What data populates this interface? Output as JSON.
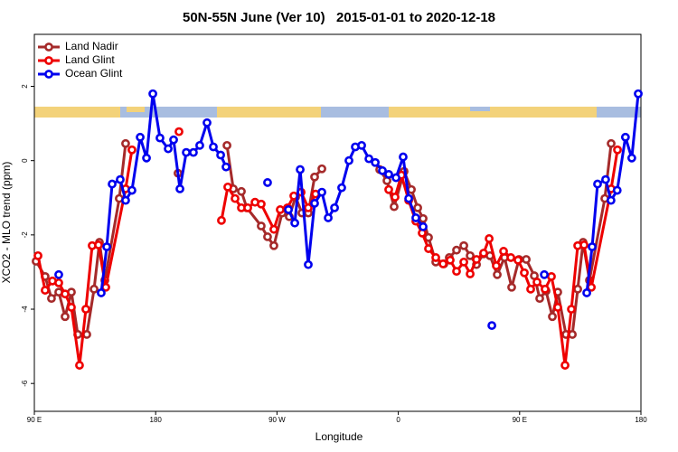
{
  "chart_data": {
    "type": "line",
    "title": "50N-55N June (Ver 10)   2015-01-01 to 2020-12-18",
    "x_label": "Longitude",
    "y_label": "XCO2 - MLO trend (ppm)",
    "xlim": [
      90,
      540
    ],
    "ylim": [
      -6.75,
      3.4
    ],
    "xticks": [
      {
        "value": 90,
        "label": "90 E"
      },
      {
        "value": 180,
        "label": "180"
      },
      {
        "value": 270,
        "label": "90 W"
      },
      {
        "value": 360,
        "label": "0"
      },
      {
        "value": 450,
        "label": "90 E"
      },
      {
        "value": 540,
        "label": "180"
      }
    ],
    "yticks": [
      -6,
      -4,
      -2,
      0,
      2
    ],
    "legend": "top-left",
    "series": [
      {
        "name": "Land Nadir",
        "color": "#a52a2a",
        "x": [
          91.3,
          98.0,
          102.7,
          108.1,
          112.8,
          117.5,
          122.2,
          128.9,
          134.3,
          138.3,
          142.3,
          153.0,
          157.7,
          null,
          196.6,
          null,
          232.9,
          237.6,
          243.6,
          247.6,
          258.3,
          263.0,
          267.7,
          273.8,
          279.1,
          283.8,
          288.5,
          293.2,
          297.9,
          303.3,
          null,
          346.2,
          351.6,
          356.9,
          364.3,
          369.7,
          374.4,
          378.4,
          382.4,
          387.8,
          393.8,
          397.8,
          403.2,
          408.6,
          413.3,
          418.0,
          423.3,
          428.0,
          433.4,
          438.8,
          444.1,
          449.5,
          454.9,
          460.9,
          464.9,
          469.6,
          474.3,
          478.3,
          484.4,
          489.1,
          493.1,
          497.1,
          501.8,
          513.2,
          517.9
        ],
        "values": [
          -2.71,
          -3.12,
          -3.71,
          -3.54,
          -4.2,
          -3.54,
          -4.68,
          -4.68,
          -3.46,
          -2.2,
          -3.22,
          -1.02,
          0.46,
          null,
          -0.34,
          null,
          0.41,
          -0.76,
          -0.83,
          -1.27,
          -1.76,
          -2.05,
          -2.29,
          -1.41,
          -1.51,
          -0.98,
          -1.41,
          -1.41,
          -0.44,
          -0.22,
          null,
          -0.24,
          -0.54,
          -1.24,
          -0.29,
          -0.78,
          -1.27,
          -1.56,
          -2.07,
          -2.73,
          -2.78,
          -2.61,
          -2.41,
          -2.29,
          -2.56,
          -2.8,
          -2.51,
          -2.56,
          -3.07,
          -2.61,
          -3.41,
          -2.66,
          -2.66,
          -3.1,
          -3.71,
          -3.51,
          -4.2,
          -3.54,
          -4.68,
          -4.68,
          -3.46,
          -2.2,
          -3.22,
          -1.02,
          0.46
        ]
      },
      {
        "name": "Land Glint",
        "color": "#ee0000",
        "x": [
          92.7,
          98.0,
          103.4,
          108.1,
          112.8,
          117.5,
          123.5,
          128.2,
          132.9,
          137.6,
          143.0,
          157.7,
          162.4,
          null,
          197.3,
          null,
          228.8,
          233.5,
          238.9,
          243.6,
          248.3,
          253.7,
          258.3,
          267.7,
          272.4,
          277.8,
          282.5,
          287.9,
          293.2,
          298.6,
          null,
          352.9,
          357.6,
          362.3,
          367.7,
          373.0,
          377.7,
          382.4,
          387.8,
          393.2,
          398.5,
          403.2,
          408.6,
          413.3,
          418.0,
          423.3,
          427.4,
          432.7,
          438.1,
          443.5,
          448.8,
          453.5,
          458.2,
          462.9,
          468.9,
          473.6,
          478.3,
          483.7,
          488.4,
          493.1,
          497.8,
          503.2,
          517.9,
          522.6
        ],
        "values": [
          -2.56,
          -3.49,
          -3.24,
          -3.29,
          -3.59,
          -3.95,
          -5.51,
          -4.0,
          -2.29,
          -2.27,
          -3.41,
          -0.76,
          0.29,
          null,
          0.78,
          null,
          -1.61,
          -0.71,
          -1.02,
          -1.27,
          -1.27,
          -1.12,
          -1.17,
          -1.85,
          -1.32,
          -1.27,
          -0.95,
          -0.85,
          -1.27,
          -0.9,
          null,
          -0.78,
          -0.98,
          -0.39,
          -1.07,
          -1.63,
          -1.95,
          -2.37,
          -2.61,
          -2.78,
          -2.68,
          -2.98,
          -2.73,
          -3.05,
          -2.66,
          -2.49,
          -2.1,
          -2.83,
          -2.44,
          -2.61,
          -2.68,
          -3.02,
          -3.46,
          -3.27,
          -3.46,
          -3.12,
          -3.95,
          -5.51,
          -4.0,
          -2.29,
          -2.27,
          -3.41,
          -0.76,
          0.29
        ]
      },
      {
        "name": "Ocean Glint",
        "color": "#0000ee",
        "x": [
          108.1,
          null,
          139.6,
          143.7,
          147.7,
          153.7,
          157.7,
          162.4,
          168.5,
          173.2,
          177.9,
          183.2,
          189.3,
          193.3,
          198.0,
          202.7,
          208.0,
          212.7,
          218.1,
          222.8,
          228.2,
          232.2,
          null,
          263.0,
          null,
          278.5,
          283.2,
          287.2,
          293.2,
          297.9,
          303.3,
          308.0,
          312.7,
          318.0,
          323.4,
          328.1,
          332.8,
          338.2,
          342.9,
          348.2,
          352.9,
          358.3,
          363.6,
          367.7,
          373.0,
          378.4,
          null,
          429.4,
          null,
          468.3,
          null,
          499.8,
          503.8,
          507.8,
          513.8,
          517.8,
          522.4,
          528.5,
          533.2,
          538.0
        ],
        "values": [
          -3.07,
          null,
          -3.56,
          -2.32,
          -0.63,
          -0.51,
          -1.07,
          -0.8,
          0.63,
          0.07,
          1.8,
          0.61,
          0.32,
          0.56,
          -0.76,
          0.22,
          0.22,
          0.41,
          1.02,
          0.37,
          0.15,
          -0.17,
          null,
          -0.59,
          null,
          -1.32,
          -1.68,
          -0.24,
          -2.8,
          -1.15,
          -0.85,
          -1.54,
          -1.27,
          -0.73,
          0,
          0.37,
          0.41,
          0.05,
          -0.05,
          -0.27,
          -0.37,
          -0.46,
          0.1,
          -1.02,
          -1.54,
          -1.78,
          null,
          -4.44,
          null,
          -3.07,
          null,
          -3.56,
          -2.32,
          -0.63,
          -0.51,
          -1.07,
          -0.8,
          0.63,
          0.07,
          1.8
        ]
      }
    ]
  }
}
